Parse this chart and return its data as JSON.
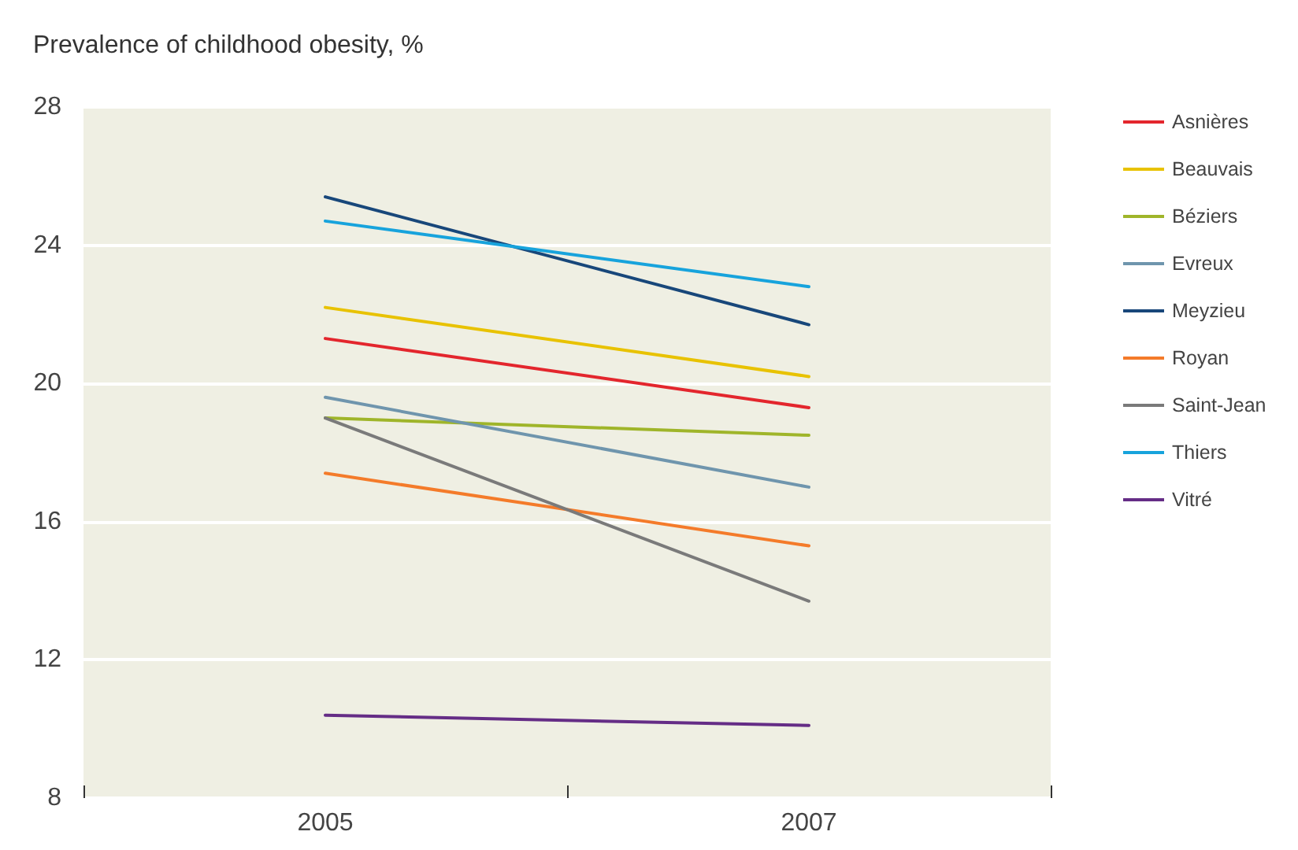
{
  "chart_data": {
    "type": "line",
    "title": "Prevalence of childhood obesity, %",
    "categories": [
      "2005",
      "2007"
    ],
    "series": [
      {
        "name": "Asnières",
        "color": "#e3262d",
        "values": [
          21.3,
          19.3
        ]
      },
      {
        "name": "Beauvais",
        "color": "#e8c200",
        "values": [
          22.2,
          20.2
        ]
      },
      {
        "name": "Béziers",
        "color": "#9fb52a",
        "values": [
          19.0,
          18.5
        ]
      },
      {
        "name": "Evreux",
        "color": "#6f95ad",
        "values": [
          19.6,
          17.0
        ]
      },
      {
        "name": "Meyzieu",
        "color": "#18477a",
        "values": [
          25.4,
          21.7
        ]
      },
      {
        "name": "Royan",
        "color": "#f47b2a",
        "values": [
          17.4,
          15.3
        ]
      },
      {
        "name": "Saint-Jean",
        "color": "#7a7a7a",
        "values": [
          19.0,
          13.7
        ]
      },
      {
        "name": "Thiers",
        "color": "#17a3dc",
        "values": [
          24.7,
          22.8
        ]
      },
      {
        "name": "Vitré",
        "color": "#652d86",
        "values": [
          10.4,
          10.1
        ]
      }
    ],
    "ylim": [
      8,
      28
    ],
    "yticks": [
      8,
      12,
      16,
      20,
      24,
      28
    ],
    "grid": "y",
    "legend": "right",
    "marker": "none",
    "line_style": "solid"
  }
}
